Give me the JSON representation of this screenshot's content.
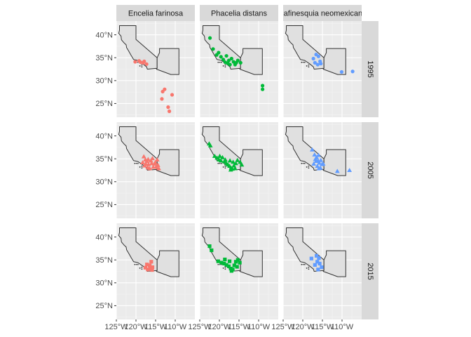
{
  "chart_data": {
    "type": "scatter",
    "facet_cols": [
      "Encelia farinosa",
      "Phacelia distans",
      "Rafinesquia neomexicana"
    ],
    "facet_rows": [
      "1995",
      "2005",
      "2015"
    ],
    "xlim": [
      -125,
      -105
    ],
    "ylim": [
      22,
      43
    ],
    "x_ticks": [
      -125,
      -120,
      -115,
      -110
    ],
    "x_tick_labels": [
      "125°W",
      "120°W",
      "115°W",
      "110°W"
    ],
    "y_ticks": [
      25,
      30,
      35,
      40
    ],
    "y_tick_labels": [
      "25°N",
      "30°N",
      "35°N",
      "40°N"
    ],
    "grid": true,
    "colors": {
      "Encelia farinosa": "#F8766D",
      "Phacelia distans": "#00BA38",
      "Rafinesquia neomexicana": "#619CFF",
      "panel_bg": "#EBEBEB",
      "strip_bg": "#D9D9D9",
      "region_fill": "#E0E0E0",
      "region_stroke": "#333333"
    },
    "shapes": {
      "1995": "circle",
      "2005": "triangle",
      "2015": "square"
    },
    "points": {
      "Encelia farinosa": {
        "1995": [
          [
            -120.2,
            34.1
          ],
          [
            -119.2,
            34.3
          ],
          [
            -118.8,
            34.0
          ],
          [
            -118.2,
            33.9
          ],
          [
            -117.9,
            34.2
          ],
          [
            -117.3,
            33.6
          ],
          [
            -113.2,
            27.6
          ],
          [
            -112.7,
            28.1
          ],
          [
            -113.4,
            26.0
          ],
          [
            -111.8,
            24.2
          ],
          [
            -111.5,
            23.3
          ],
          [
            -110.8,
            26.9
          ]
        ],
        "2005": [
          [
            -118.0,
            35.5
          ],
          [
            -117.6,
            34.8
          ],
          [
            -118.3,
            34.2
          ],
          [
            -117.2,
            34.5
          ],
          [
            -116.8,
            33.8
          ],
          [
            -116.2,
            34.6
          ],
          [
            -115.6,
            33.2
          ],
          [
            -117.8,
            33.5
          ],
          [
            -116.5,
            32.9
          ],
          [
            -115.1,
            34.2
          ],
          [
            -114.6,
            34.8
          ],
          [
            -114.4,
            33.6
          ],
          [
            -115.8,
            35.1
          ],
          [
            -117.0,
            33.1
          ],
          [
            -115.3,
            33.9
          ],
          [
            -114.9,
            33.2
          ],
          [
            -117.5,
            33.9
          ],
          [
            -116.0,
            34.0
          ],
          [
            -114.2,
            32.9
          ],
          [
            -116.9,
            34.9
          ]
        ],
        "2015": [
          [
            -117.6,
            33.3
          ],
          [
            -117.0,
            32.9
          ],
          [
            -116.4,
            33.1
          ],
          [
            -115.8,
            33.4
          ],
          [
            -116.5,
            33.8
          ],
          [
            -117.2,
            34.0
          ],
          [
            -115.9,
            32.8
          ],
          [
            -116.1,
            34.6
          ]
        ]
      },
      "Phacelia distans": {
        "1995": [
          [
            -122.4,
            39.3
          ],
          [
            -121.6,
            36.9
          ],
          [
            -120.7,
            35.6
          ],
          [
            -120.2,
            36.1
          ],
          [
            -119.6,
            35.2
          ],
          [
            -119.0,
            34.6
          ],
          [
            -118.5,
            34.0
          ],
          [
            -117.9,
            33.8
          ],
          [
            -117.3,
            33.5
          ],
          [
            -116.9,
            34.8
          ],
          [
            -116.4,
            34.1
          ],
          [
            -115.7,
            33.9
          ],
          [
            -115.3,
            34.4
          ],
          [
            -114.6,
            33.9
          ],
          [
            -117.6,
            34.4
          ],
          [
            -118.2,
            35.4
          ],
          [
            -116.0,
            33.5
          ],
          [
            -109.0,
            28.9
          ],
          [
            -109.0,
            28.1
          ]
        ],
        "2005": [
          [
            -122.6,
            38.3
          ],
          [
            -122.3,
            37.9
          ],
          [
            -121.2,
            35.6
          ],
          [
            -120.6,
            35.2
          ],
          [
            -120.1,
            34.8
          ],
          [
            -119.6,
            34.6
          ],
          [
            -119.2,
            35.3
          ],
          [
            -118.7,
            34.4
          ],
          [
            -118.2,
            34.0
          ],
          [
            -117.8,
            33.7
          ],
          [
            -117.4,
            33.4
          ],
          [
            -117.0,
            33.0
          ],
          [
            -116.7,
            32.8
          ],
          [
            -116.3,
            33.5
          ],
          [
            -115.8,
            34.0
          ],
          [
            -115.4,
            34.7
          ],
          [
            -114.7,
            34.3
          ],
          [
            -114.3,
            33.7
          ],
          [
            -116.0,
            32.9
          ],
          [
            -117.3,
            34.6
          ],
          [
            -118.5,
            34.8
          ],
          [
            -119.9,
            35.6
          ],
          [
            -116.5,
            34.3
          ],
          [
            -117.1,
            32.6
          ]
        ],
        "2015": [
          [
            -122.5,
            38.0
          ],
          [
            -122.0,
            37.1
          ],
          [
            -120.3,
            34.7
          ],
          [
            -119.5,
            34.4
          ],
          [
            -118.8,
            34.2
          ],
          [
            -118.2,
            33.9
          ],
          [
            -117.6,
            33.6
          ],
          [
            -117.1,
            33.1
          ],
          [
            -116.6,
            32.9
          ],
          [
            -116.2,
            33.8
          ],
          [
            -115.8,
            34.6
          ],
          [
            -115.3,
            35.0
          ],
          [
            -114.8,
            34.4
          ],
          [
            -117.4,
            34.7
          ],
          [
            -118.6,
            35.1
          ],
          [
            -116.9,
            32.6
          ],
          [
            -115.5,
            33.5
          ]
        ]
      },
      "Rafinesquia neomexicana": {
        "1995": [
          [
            -117.3,
            34.8
          ],
          [
            -116.6,
            35.7
          ],
          [
            -116.0,
            35.3
          ],
          [
            -115.6,
            34.2
          ],
          [
            -116.9,
            33.9
          ],
          [
            -116.2,
            33.5
          ],
          [
            -115.4,
            33.7
          ],
          [
            -110.1,
            31.9
          ],
          [
            -107.3,
            32.0
          ]
        ],
        "2005": [
          [
            -117.6,
            37.0
          ],
          [
            -117.0,
            35.9
          ],
          [
            -116.5,
            35.3
          ],
          [
            -116.1,
            34.6
          ],
          [
            -115.8,
            34.1
          ],
          [
            -116.6,
            34.5
          ],
          [
            -117.2,
            33.9
          ],
          [
            -116.3,
            33.4
          ],
          [
            -115.5,
            33.0
          ],
          [
            -115.1,
            33.8
          ],
          [
            -115.9,
            32.9
          ],
          [
            -116.8,
            34.9
          ],
          [
            -115.4,
            34.7
          ],
          [
            -114.8,
            33.9
          ],
          [
            -116.0,
            35.8
          ],
          [
            -111.2,
            32.3
          ],
          [
            -108.1,
            32.5
          ]
        ],
        "2015": [
          [
            -117.8,
            35.3
          ],
          [
            -116.5,
            35.9
          ],
          [
            -115.9,
            35.4
          ],
          [
            -116.3,
            34.6
          ],
          [
            -116.9,
            33.9
          ],
          [
            -115.7,
            34.2
          ],
          [
            -116.1,
            32.9
          ],
          [
            -115.2,
            33.4
          ]
        ]
      }
    }
  }
}
